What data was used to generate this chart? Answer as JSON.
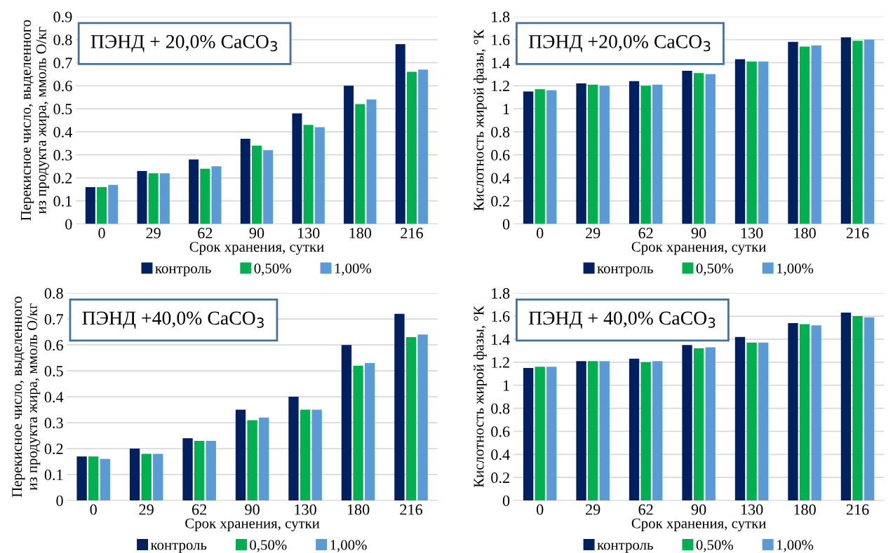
{
  "chart_data": [
    {
      "type": "bar",
      "ylabel": "Перекисное число, выделенного\nиз продукта жира, ммоль О/кг",
      "xlabel": "Срок хранения, сутки",
      "annotations": [
        "ПЭНД + 20,0% CaCO$_{3}$"
      ],
      "categories": [
        "0",
        "29",
        "62",
        "90",
        "130",
        "180",
        "216"
      ],
      "series": [
        {
          "name": "контроль",
          "color": "#002060",
          "values": [
            0.16,
            0.23,
            0.28,
            0.37,
            0.48,
            0.6,
            0.78
          ]
        },
        {
          "name": "0,50%",
          "color": "#00b050",
          "values": [
            0.16,
            0.22,
            0.24,
            0.34,
            0.43,
            0.52,
            0.66
          ]
        },
        {
          "name": "1,00%",
          "color": "#5b9bd5",
          "values": [
            0.17,
            0.22,
            0.25,
            0.32,
            0.42,
            0.54,
            0.67
          ]
        }
      ],
      "ylim": [
        0,
        0.9
      ],
      "yticks": [
        0,
        0.1,
        0.2,
        0.3,
        0.4,
        0.5,
        0.6,
        0.7,
        0.8,
        0.9
      ],
      "grid": "y",
      "legend": "bottom"
    },
    {
      "type": "bar",
      "ylabel": "Кислотность жирой фазы, °К",
      "xlabel": "Срок хранения, сутки",
      "annotations": [
        "ПЭНД +20,0% CaCO$_{3}$"
      ],
      "categories": [
        "0",
        "29",
        "62",
        "90",
        "130",
        "180",
        "216"
      ],
      "series": [
        {
          "name": "контроль",
          "color": "#002060",
          "values": [
            1.15,
            1.22,
            1.24,
            1.33,
            1.43,
            1.58,
            1.62
          ]
        },
        {
          "name": "0,50%",
          "color": "#00b050",
          "values": [
            1.17,
            1.21,
            1.2,
            1.31,
            1.41,
            1.54,
            1.59
          ]
        },
        {
          "name": "1,00%",
          "color": "#5b9bd5",
          "values": [
            1.16,
            1.2,
            1.21,
            1.3,
            1.41,
            1.55,
            1.6
          ]
        }
      ],
      "ylim": [
        0,
        1.8
      ],
      "yticks": [
        0,
        0.2,
        0.4,
        0.6,
        0.8,
        1,
        1.2,
        1.4,
        1.6,
        1.8
      ],
      "grid": "y",
      "legend": "bottom"
    },
    {
      "type": "bar",
      "ylabel": "Перекисное число, выделенного\nиз продукта жира, ммоль О/кг",
      "xlabel": "Срок хранения, сутки",
      "annotations": [
        "ПЭНД +40,0% CaCO$_{3}$"
      ],
      "categories": [
        "0",
        "29",
        "62",
        "90",
        "130",
        "180",
        "216"
      ],
      "series": [
        {
          "name": "контроль",
          "color": "#002060",
          "values": [
            0.17,
            0.2,
            0.24,
            0.35,
            0.4,
            0.6,
            0.72
          ]
        },
        {
          "name": "0,50%",
          "color": "#00b050",
          "values": [
            0.17,
            0.18,
            0.23,
            0.31,
            0.35,
            0.52,
            0.63
          ]
        },
        {
          "name": "1,00%",
          "color": "#5b9bd5",
          "values": [
            0.16,
            0.18,
            0.23,
            0.32,
            0.35,
            0.53,
            0.64
          ]
        }
      ],
      "ylim": [
        0,
        0.8
      ],
      "yticks": [
        0,
        0.1,
        0.2,
        0.3,
        0.4,
        0.5,
        0.6,
        0.7,
        0.8
      ],
      "grid": "y",
      "legend": "bottom"
    },
    {
      "type": "bar",
      "ylabel": "Кислотность жирой фазы, °К",
      "xlabel": "Срок хранения, сутки",
      "annotations": [
        "ПЭНД + 40,0% CaCO$_{3}$"
      ],
      "categories": [
        "0",
        "29",
        "62",
        "90",
        "130",
        "180",
        "216"
      ],
      "series": [
        {
          "name": "контроль",
          "color": "#002060",
          "values": [
            1.15,
            1.21,
            1.23,
            1.35,
            1.42,
            1.54,
            1.63
          ]
        },
        {
          "name": "0,50%",
          "color": "#00b050",
          "values": [
            1.16,
            1.21,
            1.2,
            1.32,
            1.37,
            1.53,
            1.6
          ]
        },
        {
          "name": "1,00%",
          "color": "#5b9bd5",
          "values": [
            1.16,
            1.21,
            1.21,
            1.33,
            1.37,
            1.52,
            1.59
          ]
        }
      ],
      "ylim": [
        0,
        1.8
      ],
      "yticks": [
        0,
        0.2,
        0.4,
        0.6,
        0.8,
        1,
        1.2,
        1.4,
        1.6,
        1.8
      ],
      "grid": "y",
      "legend": "bottom"
    }
  ]
}
